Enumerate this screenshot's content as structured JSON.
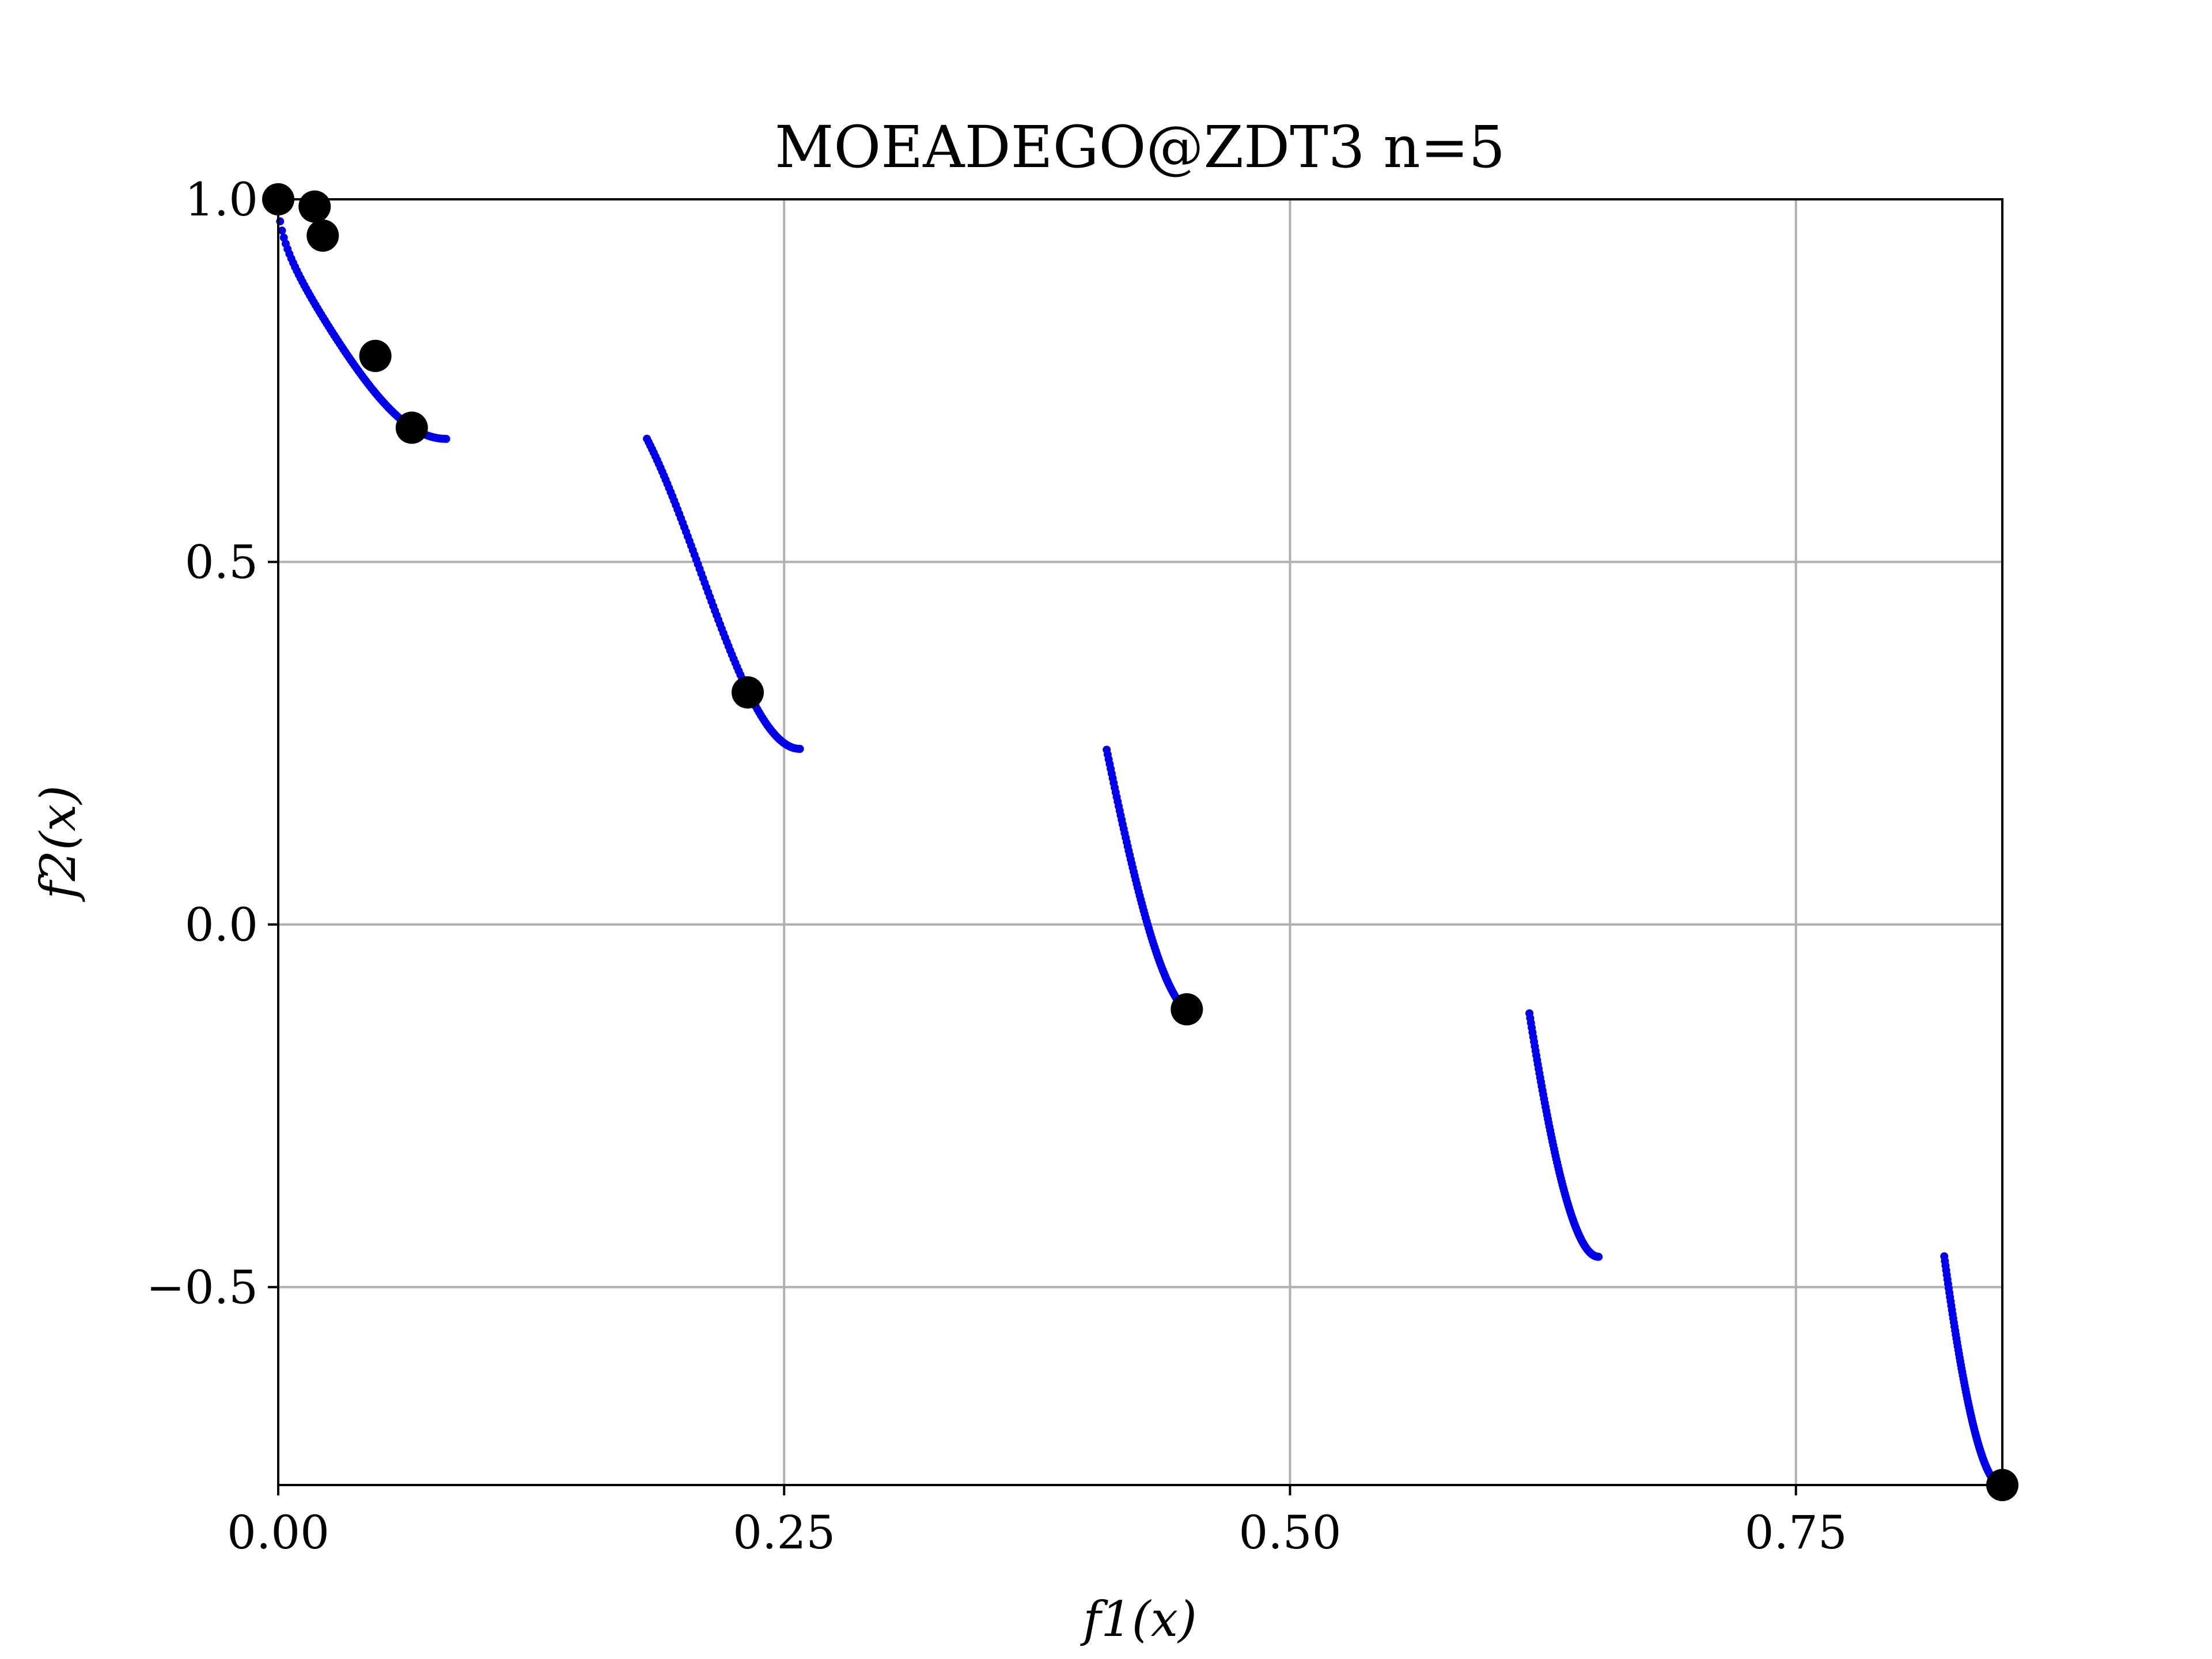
{
  "chart_data": {
    "type": "scatter",
    "title": "MOEADEGO@ZDT3 n=5",
    "xlabel": "f1(x)",
    "ylabel": "f2(x)",
    "xlim": [
      0.0,
      0.852
    ],
    "ylim": [
      -0.773,
      1.0
    ],
    "xticks": [
      0.0,
      0.25,
      0.5,
      0.75
    ],
    "xtick_labels": [
      "0.00",
      "0.25",
      "0.50",
      "0.75"
    ],
    "yticks": [
      -0.5,
      0.0,
      0.5,
      1.0
    ],
    "ytick_labels": [
      "−0.5",
      "0.0",
      "0.5",
      "1.0"
    ],
    "grid": true,
    "colors": {
      "front": "#0000ee",
      "samples": "#000000",
      "grid": "#b0b0b0"
    },
    "front_segments": [
      [
        0.0,
        0.083
      ],
      [
        0.1822,
        0.2578
      ],
      [
        0.4094,
        0.4539
      ],
      [
        0.6183,
        0.6525
      ],
      [
        0.8233,
        0.8518
      ]
    ],
    "series": [
      {
        "values": [
          [
            0.0,
            1.0
          ],
          [
            0.018,
            0.99
          ],
          [
            0.022,
            0.95
          ],
          [
            0.048,
            0.784
          ],
          [
            0.066,
            0.685
          ],
          [
            0.232,
            0.32
          ],
          [
            0.449,
            -0.117
          ],
          [
            0.852,
            -0.773
          ]
        ]
      }
    ]
  }
}
